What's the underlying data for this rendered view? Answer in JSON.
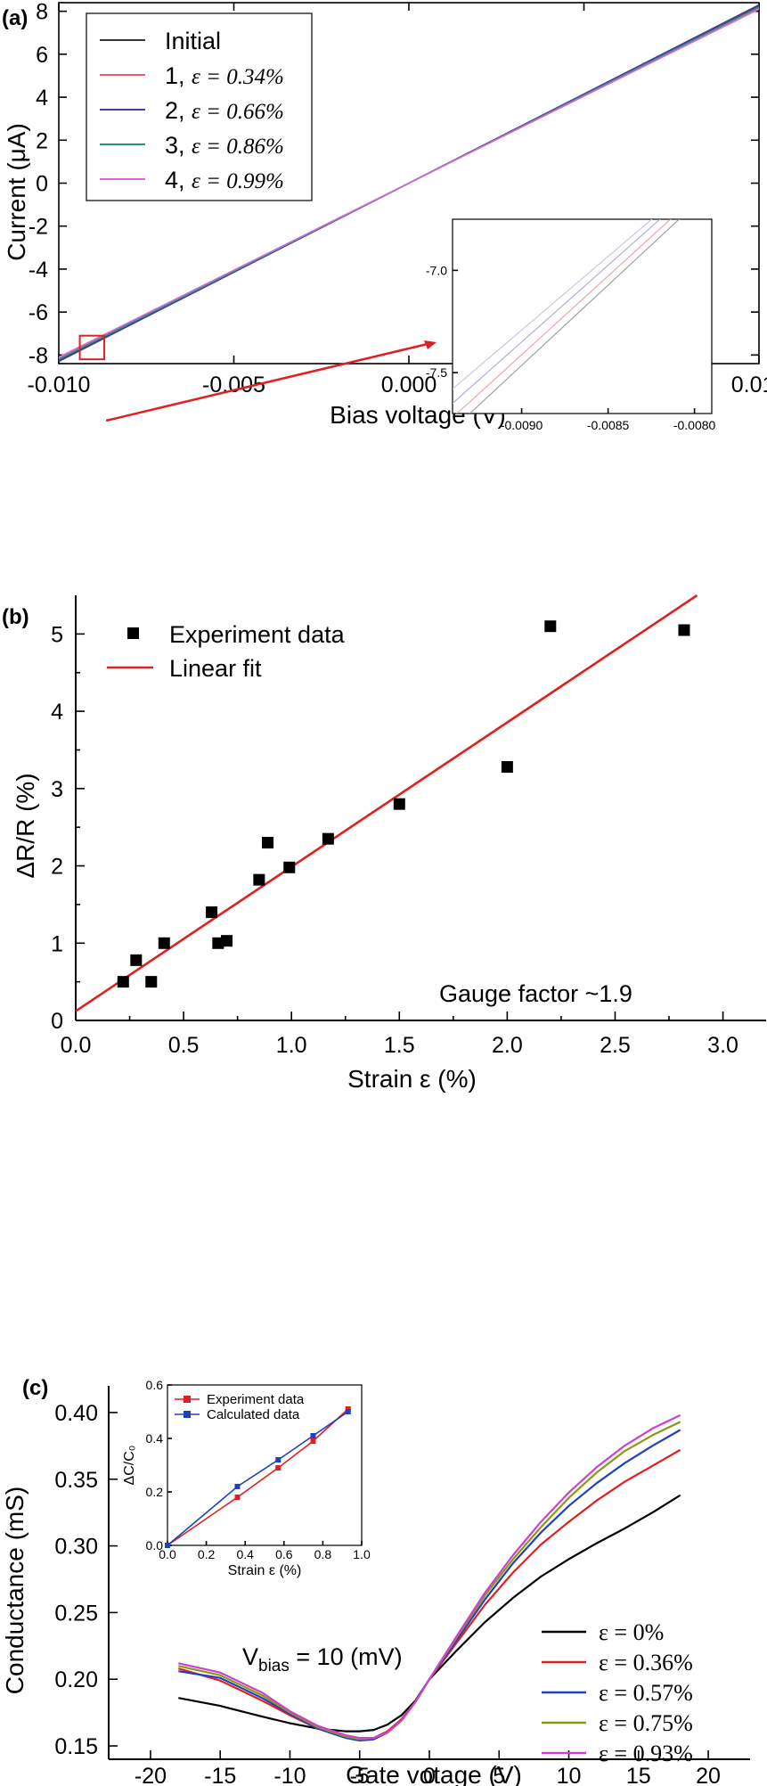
{
  "chart_data": [
    {
      "panel": "(a)",
      "type": "line",
      "xlabel": "Bias voltage (V)",
      "ylabel": "Current (μA)",
      "xlim": [
        -0.01,
        0.01
      ],
      "ylim": [
        -8.4,
        8.4
      ],
      "x_ticks": [
        "-0.010",
        "-0.005",
        "0.000",
        "0.005",
        "0.010"
      ],
      "x_tick_values": [
        -0.01,
        -0.005,
        0.0,
        0.005,
        0.01
      ],
      "y_ticks": [
        "-8",
        "-6",
        "-4",
        "-2",
        "0",
        "2",
        "4",
        "6",
        "8"
      ],
      "y_tick_values": [
        -8,
        -6,
        -4,
        -2,
        0,
        2,
        4,
        6,
        8
      ],
      "legend_position": "top-left",
      "series": [
        {
          "name": "Initial",
          "name_suffix": "",
          "color": "#333333",
          "x": [
            -0.01,
            0.01
          ],
          "y": [
            -8.25,
            8.25
          ]
        },
        {
          "name": "1, ",
          "name_suffix": "ε = 0.34%",
          "color": "#e8606a",
          "x": [
            -0.01,
            0.01
          ],
          "y": [
            -8.15,
            8.15
          ]
        },
        {
          "name": "2, ",
          "name_suffix": "ε = 0.66%",
          "color": "#4a3d9a",
          "x": [
            -0.01,
            0.01
          ],
          "y": [
            -8.3,
            8.3
          ]
        },
        {
          "name": "3, ",
          "name_suffix": "ε = 0.86%",
          "color": "#2f8f8f",
          "x": [
            -0.01,
            0.01
          ],
          "y": [
            -8.2,
            8.2
          ]
        },
        {
          "name": "4, ",
          "name_suffix": "ε = 0.99%",
          "color": "#d66ad6",
          "x": [
            -0.01,
            0.01
          ],
          "y": [
            -8.1,
            8.1
          ]
        }
      ],
      "inset": {
        "xlim": [
          -0.0094,
          -0.0079
        ],
        "ylim": [
          -7.7,
          -6.75
        ],
        "x_ticks": [
          "-0.0090",
          "-0.0085",
          "-0.0080"
        ],
        "x_tick_values": [
          -0.009,
          -0.0085,
          -0.008
        ],
        "y_ticks": [
          "-7.0",
          "-7.5"
        ],
        "y_tick_values": [
          -7.0,
          -7.5
        ],
        "lines": [
          {
            "color": "#e8a0a8",
            "x": [
              -0.0094,
              -0.0081
            ],
            "y": [
              -7.72,
              -6.72
            ]
          },
          {
            "color": "#b0a8d8",
            "x": [
              -0.0094,
              -0.008
            ],
            "y": [
              -7.65,
              -6.6
            ]
          },
          {
            "color": "#c8c0e8",
            "x": [
              -0.0094,
              -0.0079
            ],
            "y": [
              -7.58,
              -6.5
            ]
          },
          {
            "color": "#999999",
            "x": [
              -0.0093,
              -0.008
            ],
            "y": [
              -7.7,
              -6.68
            ]
          }
        ]
      },
      "zoom_box": {
        "x": [
          -0.0094,
          -0.0087
        ],
        "y": [
          -8.2,
          -7.1
        ]
      },
      "arrow_color": "#e02020"
    },
    {
      "panel": "(b)",
      "type": "scatter",
      "xlabel": "Strain ε (%)",
      "ylabel": "ΔR/R (%)",
      "xlim": [
        0.0,
        3.2
      ],
      "ylim": [
        0,
        5.5
      ],
      "x_ticks": [
        "0.0",
        "0.5",
        "1.0",
        "1.5",
        "2.0",
        "2.5",
        "3.0"
      ],
      "x_tick_values": [
        0.0,
        0.5,
        1.0,
        1.5,
        2.0,
        2.5,
        3.0
      ],
      "y_ticks": [
        "0",
        "1",
        "2",
        "3",
        "4",
        "5"
      ],
      "y_tick_values": [
        0,
        1,
        2,
        3,
        4,
        5
      ],
      "legend_position": "top-left",
      "legend": {
        "points": "Experiment data",
        "fit": "Linear fit"
      },
      "annotation": "Gauge factor ~1.9",
      "points": {
        "x": [
          0.22,
          0.28,
          0.35,
          0.41,
          0.63,
          0.66,
          0.7,
          0.85,
          0.89,
          0.99,
          1.17,
          1.5,
          2.0,
          2.2,
          2.82
        ],
        "y": [
          0.5,
          0.78,
          0.5,
          1.0,
          1.4,
          1.0,
          1.03,
          1.82,
          2.3,
          1.98,
          2.35,
          2.8,
          3.28,
          5.1,
          5.05
        ]
      },
      "fit": {
        "x": [
          0.0,
          2.88
        ],
        "y": [
          0.12,
          5.5
        ],
        "color": "#e02020"
      }
    },
    {
      "panel": "(c)",
      "type": "line",
      "xlabel": "Gate votage (V)",
      "ylabel": "Conductance (mS)",
      "xlim": [
        -23,
        23
      ],
      "ylim": [
        0.14,
        0.42
      ],
      "x_ticks": [
        "-20",
        "-15",
        "-10",
        "-5",
        "0",
        "5",
        "10",
        "15",
        "20"
      ],
      "x_tick_values": [
        -20,
        -15,
        -10,
        -5,
        0,
        5,
        10,
        15,
        20
      ],
      "y_ticks": [
        "0.15",
        "0.20",
        "0.25",
        "0.30",
        "0.35",
        "0.40"
      ],
      "y_tick_values": [
        0.15,
        0.2,
        0.25,
        0.3,
        0.35,
        0.4
      ],
      "annotation": {
        "main": "V",
        "sub": "bias",
        "rest": " = 10 (mV)"
      },
      "legend_position": "bottom-right",
      "series": [
        {
          "name": "ε = 0%",
          "color": "#000000",
          "x": [
            -18,
            -15,
            -12,
            -10,
            -8,
            -6,
            -5,
            -4,
            -3,
            -2,
            -1,
            0,
            2,
            4,
            6,
            8,
            10,
            12,
            14,
            16,
            18
          ],
          "y": [
            0.186,
            0.18,
            0.172,
            0.167,
            0.163,
            0.161,
            0.161,
            0.162,
            0.166,
            0.173,
            0.184,
            0.2,
            0.222,
            0.243,
            0.261,
            0.277,
            0.29,
            0.302,
            0.313,
            0.325,
            0.338
          ]
        },
        {
          "name": "ε = 0.36%",
          "color": "#e02020",
          "x": [
            -18,
            -15,
            -12,
            -10,
            -8,
            -6,
            -5,
            -4,
            -3,
            -2,
            -1,
            0,
            2,
            4,
            6,
            8,
            10,
            12,
            14,
            16,
            18
          ],
          "y": [
            0.208,
            0.199,
            0.184,
            0.173,
            0.163,
            0.157,
            0.155,
            0.156,
            0.161,
            0.17,
            0.183,
            0.2,
            0.228,
            0.256,
            0.28,
            0.301,
            0.318,
            0.334,
            0.348,
            0.36,
            0.372
          ]
        },
        {
          "name": "ε = 0.57%",
          "color": "#2040c0",
          "x": [
            -18,
            -15,
            -12,
            -10,
            -8,
            -6,
            -5,
            -4,
            -3,
            -2,
            -1,
            0,
            2,
            4,
            6,
            8,
            10,
            12,
            14,
            16,
            18
          ],
          "y": [
            0.206,
            0.201,
            0.186,
            0.174,
            0.163,
            0.156,
            0.154,
            0.155,
            0.16,
            0.169,
            0.183,
            0.2,
            0.23,
            0.26,
            0.287,
            0.31,
            0.33,
            0.347,
            0.362,
            0.375,
            0.387
          ]
        },
        {
          "name": "ε = 0.75%",
          "color": "#8a9a10",
          "x": [
            -18,
            -15,
            -12,
            -10,
            -8,
            -6,
            -5,
            -4,
            -3,
            -2,
            -1,
            0,
            2,
            4,
            6,
            8,
            10,
            12,
            14,
            16,
            18
          ],
          "y": [
            0.21,
            0.203,
            0.188,
            0.175,
            0.164,
            0.157,
            0.155,
            0.156,
            0.16,
            0.169,
            0.183,
            0.2,
            0.232,
            0.263,
            0.29,
            0.314,
            0.336,
            0.355,
            0.371,
            0.383,
            0.393
          ]
        },
        {
          "name": "ε = 0.93%",
          "color": "#d040d0",
          "x": [
            -18,
            -15,
            -12,
            -10,
            -8,
            -6,
            -5,
            -4,
            -3,
            -2,
            -1,
            0,
            2,
            4,
            6,
            8,
            10,
            12,
            14,
            16,
            18
          ],
          "y": [
            0.212,
            0.205,
            0.19,
            0.176,
            0.165,
            0.158,
            0.156,
            0.156,
            0.16,
            0.169,
            0.183,
            0.2,
            0.233,
            0.265,
            0.293,
            0.318,
            0.34,
            0.359,
            0.375,
            0.388,
            0.398
          ]
        }
      ],
      "inset": {
        "xlabel": "Strain ε (%)",
        "ylabel": "ΔC/C₀",
        "xlim": [
          0.0,
          1.0
        ],
        "ylim": [
          0.0,
          0.6
        ],
        "x_ticks": [
          "0.0",
          "0.2",
          "0.4",
          "0.6",
          "0.8",
          "1.0"
        ],
        "x_tick_values": [
          0.0,
          0.2,
          0.4,
          0.6,
          0.8,
          1.0
        ],
        "y_ticks": [
          "0.0",
          "0.2",
          "0.4",
          "0.6"
        ],
        "y_tick_values": [
          0.0,
          0.2,
          0.4,
          0.6
        ],
        "legend_position": "top-left",
        "series": [
          {
            "name": "Experiment data",
            "color": "#e02020",
            "x": [
              0.0,
              0.36,
              0.57,
              0.75,
              0.93
            ],
            "y": [
              0.0,
              0.18,
              0.29,
              0.39,
              0.51
            ]
          },
          {
            "name": "Calculated data",
            "color": "#2040c0",
            "x": [
              0.0,
              0.36,
              0.57,
              0.75,
              0.93
            ],
            "y": [
              0.0,
              0.22,
              0.32,
              0.41,
              0.5
            ]
          }
        ]
      }
    }
  ]
}
